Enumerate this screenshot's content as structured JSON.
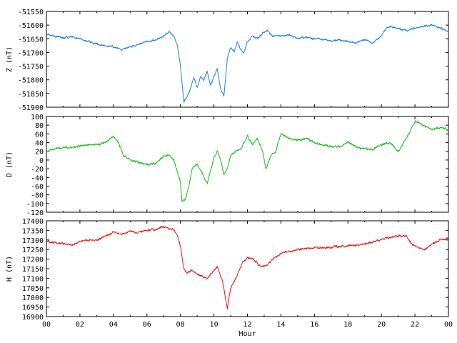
{
  "chart_data": [
    {
      "type": "line",
      "ylabel": "Z (nT)",
      "ylim": [
        -51900,
        -51550
      ],
      "yticks": [
        -51550,
        -51600,
        -51650,
        -51700,
        -51750,
        -51800,
        -51850,
        -51900
      ],
      "color": "#1f7fe0",
      "series": [
        {
          "x": [
            0,
            0.5,
            1,
            1.5,
            2,
            2.5,
            3,
            3.5,
            4,
            4.5,
            5,
            5.5,
            6,
            6.5,
            7,
            7.3,
            7.6,
            7.8,
            8.0,
            8.2,
            8.4,
            8.6,
            8.8,
            9.0,
            9.2,
            9.4,
            9.6,
            9.8,
            10.0,
            10.2,
            10.4,
            10.6,
            10.8,
            11.0,
            11.2,
            11.4,
            11.6,
            11.8,
            12.0,
            12.3,
            12.6,
            12.9,
            13.2,
            13.5,
            14,
            14.5,
            15,
            15.5,
            16,
            16.5,
            17,
            17.5,
            18,
            18.5,
            19,
            19.5,
            20,
            20.3,
            20.6,
            21,
            21.5,
            22,
            22.5,
            23,
            23.5,
            24
          ],
          "y": [
            -51635,
            -51640,
            -51648,
            -51642,
            -51650,
            -51660,
            -51670,
            -51675,
            -51680,
            -51690,
            -51680,
            -51670,
            -51660,
            -51655,
            -51640,
            -51625,
            -51640,
            -51670,
            -51750,
            -51880,
            -51860,
            -51830,
            -51790,
            -51830,
            -51790,
            -51800,
            -51770,
            -51820,
            -51790,
            -51760,
            -51830,
            -51860,
            -51720,
            -51680,
            -51700,
            -51660,
            -51690,
            -51700,
            -51660,
            -51640,
            -51650,
            -51630,
            -51620,
            -51640,
            -51640,
            -51635,
            -51650,
            -51645,
            -51650,
            -51652,
            -51658,
            -51655,
            -51660,
            -51662,
            -51655,
            -51665,
            -51640,
            -51610,
            -51605,
            -51615,
            -51620,
            -51610,
            -51605,
            -51600,
            -51610,
            -51625
          ]
        }
      ]
    },
    {
      "type": "line",
      "ylabel": "D (nT)",
      "ylim": [
        -120,
        100
      ],
      "yticks": [
        100,
        80,
        60,
        40,
        20,
        0,
        -20,
        -40,
        -60,
        -80,
        -100,
        -120
      ],
      "color": "#11bb11",
      "series": [
        {
          "x": [
            0,
            0.5,
            1,
            1.5,
            2,
            2.5,
            3,
            3.5,
            4,
            4.3,
            4.6,
            5,
            5.5,
            6,
            6.5,
            7,
            7.3,
            7.6,
            7.8,
            8.0,
            8.1,
            8.3,
            8.5,
            8.7,
            9.0,
            9.3,
            9.6,
            9.9,
            10.0,
            10.2,
            10.4,
            10.6,
            10.8,
            11.0,
            11.3,
            11.6,
            12.0,
            12.3,
            12.6,
            12.9,
            13.1,
            13.4,
            13.7,
            14,
            14.5,
            15,
            15.5,
            16,
            16.5,
            17,
            17.5,
            18,
            18.5,
            19,
            19.5,
            20,
            20.5,
            21,
            21.5,
            22,
            22.5,
            23,
            23.5,
            24
          ],
          "y": [
            20,
            25,
            30,
            28,
            32,
            35,
            35,
            40,
            55,
            40,
            10,
            0,
            -5,
            -10,
            -8,
            10,
            12,
            0,
            -25,
            -50,
            -100,
            -90,
            -60,
            -20,
            -10,
            -30,
            -55,
            -10,
            5,
            20,
            0,
            -35,
            -20,
            10,
            20,
            25,
            55,
            35,
            50,
            20,
            -20,
            10,
            20,
            60,
            50,
            45,
            50,
            40,
            35,
            30,
            30,
            40,
            30,
            25,
            25,
            35,
            40,
            20,
            50,
            90,
            80,
            70,
            75,
            70
          ]
        }
      ]
    },
    {
      "type": "line",
      "ylabel": "H (nT)",
      "xlabel": "Hour",
      "xlim": [
        0,
        24
      ],
      "xtick_labels": [
        "00",
        "02",
        "04",
        "06",
        "08",
        "10",
        "12",
        "14",
        "16",
        "18",
        "20",
        "22",
        "00"
      ],
      "ylim": [
        16900,
        17400
      ],
      "yticks": [
        17400,
        17350,
        17300,
        17250,
        17200,
        17150,
        17100,
        17050,
        17000,
        16950,
        16900
      ],
      "color": "#ee1111",
      "series": [
        {
          "x": [
            0,
            0.5,
            1,
            1.5,
            2,
            2.5,
            3,
            3.5,
            4,
            4.5,
            5,
            5.5,
            6,
            6.5,
            7,
            7.3,
            7.6,
            7.8,
            8.0,
            8.2,
            8.4,
            8.7,
            9.0,
            9.3,
            9.6,
            9.9,
            10.2,
            10.5,
            10.8,
            11.0,
            11.2,
            11.4,
            11.7,
            12.0,
            12.3,
            12.6,
            12.9,
            13.2,
            13.5,
            14,
            14.5,
            15,
            15.5,
            16,
            16.5,
            17,
            17.5,
            18,
            18.5,
            19,
            19.5,
            20,
            20.5,
            21,
            21.5,
            21.8,
            22.2,
            22.6,
            23,
            23.5,
            24
          ],
          "y": [
            17290,
            17285,
            17280,
            17272,
            17290,
            17300,
            17295,
            17320,
            17340,
            17330,
            17345,
            17340,
            17350,
            17355,
            17370,
            17360,
            17355,
            17330,
            17270,
            17150,
            17130,
            17140,
            17120,
            17110,
            17100,
            17130,
            17160,
            17090,
            16940,
            17050,
            17080,
            17120,
            17180,
            17210,
            17200,
            17180,
            17160,
            17170,
            17200,
            17230,
            17240,
            17250,
            17255,
            17258,
            17260,
            17262,
            17265,
            17270,
            17272,
            17280,
            17290,
            17300,
            17315,
            17320,
            17320,
            17280,
            17260,
            17250,
            17280,
            17300,
            17310
          ]
        }
      ]
    }
  ]
}
